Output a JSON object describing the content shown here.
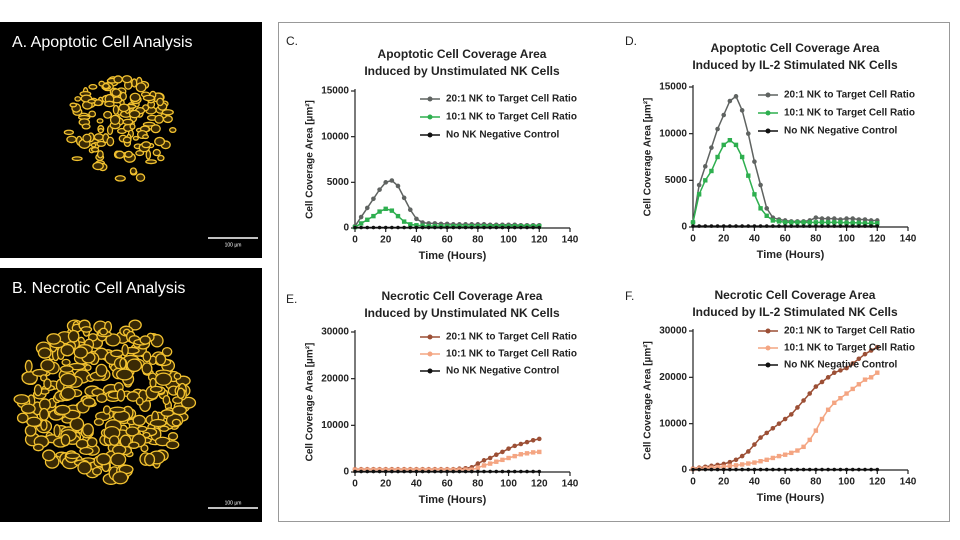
{
  "panels": [
    {
      "label": "A. Apoptotic Cell Analysis",
      "scale_bar": "100 µm"
    },
    {
      "label": "B. Necrotic Cell Analysis",
      "scale_bar": "100 µm"
    }
  ],
  "chart_data": [
    {
      "type": "line",
      "panel": "C.",
      "title": [
        "Apoptotic Cell Coverage Area",
        "Induced by Unstimulated NK Cells"
      ],
      "ylabel": "Cell Coverage Area [µm²]",
      "xlabel": "Time (Hours)",
      "x": [
        0,
        4,
        8,
        12,
        16,
        20,
        24,
        28,
        32,
        36,
        40,
        44,
        48,
        52,
        56,
        60,
        64,
        68,
        72,
        76,
        80,
        84,
        88,
        92,
        96,
        100,
        104,
        108,
        112,
        116,
        120
      ],
      "xlim": [
        0,
        140
      ],
      "xticks": [
        0,
        20,
        40,
        60,
        80,
        100,
        120,
        140
      ],
      "ylim": [
        0,
        15000
      ],
      "yticks": [
        0,
        5000,
        10000,
        15000
      ],
      "series": [
        {
          "name": "20:1 NK to Target Cell Ratio",
          "color": "#5f6361",
          "values": [
            200,
            1200,
            2200,
            3200,
            4200,
            5000,
            5200,
            4600,
            3300,
            2000,
            1000,
            600,
            500,
            500,
            450,
            450,
            400,
            400,
            400,
            400,
            400,
            400,
            350,
            350,
            350,
            350,
            350,
            300,
            300,
            300,
            300
          ]
        },
        {
          "name": "10:1 NK to Target Cell Ratio",
          "color": "#2eaf4f",
          "values": [
            100,
            500,
            900,
            1300,
            1800,
            2100,
            1900,
            1300,
            700,
            400,
            300,
            250,
            200,
            200,
            200,
            200,
            200,
            200,
            200,
            200,
            200,
            200,
            200,
            200,
            200,
            200,
            200,
            200,
            200,
            200,
            200
          ]
        },
        {
          "name": "No NK Negative Control",
          "color": "#111111",
          "values": [
            50,
            50,
            50,
            50,
            50,
            50,
            50,
            50,
            50,
            50,
            50,
            50,
            50,
            50,
            50,
            50,
            50,
            50,
            50,
            50,
            50,
            50,
            50,
            50,
            50,
            50,
            50,
            50,
            50,
            50,
            50
          ]
        }
      ]
    },
    {
      "type": "line",
      "panel": "D.",
      "title": [
        "Apoptotic Cell Coverage Area",
        "Induced by IL-2 Stimulated NK Cells"
      ],
      "ylabel": "Cell Coverage Area [µm²]",
      "xlabel": "Time (Hours)",
      "x": [
        0,
        4,
        8,
        12,
        16,
        20,
        24,
        28,
        32,
        36,
        40,
        44,
        48,
        52,
        56,
        60,
        64,
        68,
        72,
        76,
        80,
        84,
        88,
        92,
        96,
        100,
        104,
        108,
        112,
        116,
        120
      ],
      "xlim": [
        0,
        140
      ],
      "xticks": [
        0,
        20,
        40,
        60,
        80,
        100,
        120,
        140
      ],
      "ylim": [
        0,
        15000
      ],
      "yticks": [
        0,
        5000,
        10000,
        15000
      ],
      "series": [
        {
          "name": "20:1 NK to Target Cell Ratio",
          "color": "#5f6361",
          "values": [
            500,
            4500,
            6500,
            8500,
            10500,
            12000,
            13500,
            14000,
            12500,
            10000,
            7000,
            4500,
            2000,
            1000,
            800,
            700,
            600,
            600,
            600,
            700,
            1000,
            900,
            900,
            900,
            800,
            900,
            900,
            800,
            800,
            700,
            700
          ]
        },
        {
          "name": "10:1 NK to Target Cell Ratio",
          "color": "#2eaf4f",
          "values": [
            500,
            3500,
            5000,
            6000,
            7500,
            8800,
            9300,
            8800,
            7500,
            5500,
            3500,
            2000,
            1200,
            700,
            600,
            500,
            500,
            500,
            500,
            500,
            500,
            500,
            500,
            500,
            500,
            450,
            450,
            450,
            400,
            400,
            400
          ]
        },
        {
          "name": "No NK Negative Control",
          "color": "#111111",
          "values": [
            100,
            100,
            100,
            100,
            100,
            100,
            100,
            100,
            100,
            100,
            100,
            100,
            100,
            100,
            100,
            100,
            100,
            100,
            100,
            100,
            100,
            100,
            100,
            100,
            100,
            100,
            100,
            100,
            100,
            100,
            100
          ]
        }
      ]
    },
    {
      "type": "line",
      "panel": "E.",
      "title": [
        "Necrotic Cell Coverage Area",
        "Induced by Unstimulated NK Cells"
      ],
      "ylabel": "Cell Coverage Area [µm²]",
      "xlabel": "Time (Hours)",
      "x": [
        0,
        4,
        8,
        12,
        16,
        20,
        24,
        28,
        32,
        36,
        40,
        44,
        48,
        52,
        56,
        60,
        64,
        68,
        72,
        76,
        80,
        84,
        88,
        92,
        96,
        100,
        104,
        108,
        112,
        116,
        120
      ],
      "xlim": [
        0,
        140
      ],
      "xticks": [
        0,
        20,
        40,
        60,
        80,
        100,
        120,
        140
      ],
      "ylim": [
        0,
        30000
      ],
      "yticks": [
        0,
        10000,
        20000,
        30000
      ],
      "series": [
        {
          "name": "20:1 NK to Target Cell Ratio",
          "color": "#9c4f35",
          "values": [
            600,
            600,
            600,
            600,
            600,
            600,
            600,
            600,
            600,
            600,
            600,
            600,
            600,
            600,
            600,
            600,
            600,
            700,
            800,
            1000,
            1800,
            2500,
            3000,
            3700,
            4300,
            5000,
            5600,
            6000,
            6400,
            6800,
            7100
          ]
        },
        {
          "name": "10:1 NK to Target Cell Ratio",
          "color": "#f4a582",
          "values": [
            500,
            500,
            500,
            500,
            500,
            500,
            500,
            500,
            500,
            500,
            500,
            500,
            500,
            500,
            500,
            500,
            500,
            500,
            500,
            500,
            900,
            1400,
            1800,
            2200,
            2600,
            3000,
            3400,
            3800,
            4000,
            4200,
            4300
          ]
        },
        {
          "name": "No NK Negative Control",
          "color": "#111111",
          "values": [
            100,
            100,
            100,
            100,
            100,
            100,
            100,
            100,
            100,
            100,
            100,
            100,
            100,
            100,
            100,
            100,
            100,
            100,
            100,
            100,
            100,
            100,
            100,
            100,
            100,
            100,
            100,
            100,
            100,
            100,
            100
          ]
        }
      ]
    },
    {
      "type": "line",
      "panel": "F.",
      "title": [
        "Necrotic Cell Coverage Area",
        "Induced by IL-2 Stimulated NK Cells"
      ],
      "ylabel": "Cell Coverage Area [µm²]",
      "xlabel": "Time (Hours)",
      "x": [
        0,
        4,
        8,
        12,
        16,
        20,
        24,
        28,
        32,
        36,
        40,
        44,
        48,
        52,
        56,
        60,
        64,
        68,
        72,
        76,
        80,
        84,
        88,
        92,
        96,
        100,
        104,
        108,
        112,
        116,
        120
      ],
      "xlim": [
        0,
        140
      ],
      "xticks": [
        0,
        20,
        40,
        60,
        80,
        100,
        120,
        140
      ],
      "ylim": [
        0,
        30000
      ],
      "yticks": [
        0,
        10000,
        20000,
        30000
      ],
      "series": [
        {
          "name": "20:1 NK to Target Cell Ratio",
          "color": "#9c4f35",
          "values": [
            300,
            500,
            700,
            900,
            1100,
            1300,
            1700,
            2200,
            3000,
            4000,
            5500,
            7000,
            8000,
            9000,
            10000,
            11000,
            12000,
            13500,
            15000,
            16500,
            18000,
            19000,
            20000,
            21000,
            21500,
            22000,
            23000,
            24000,
            25000,
            25800,
            26500
          ]
        },
        {
          "name": "10:1 NK to Target Cell Ratio",
          "color": "#f4a582",
          "values": [
            200,
            300,
            400,
            500,
            600,
            700,
            900,
            1000,
            1200,
            1400,
            1600,
            1900,
            2200,
            2600,
            3000,
            3300,
            3700,
            4200,
            5000,
            6500,
            8500,
            11000,
            13000,
            14500,
            15500,
            16500,
            17500,
            18500,
            19500,
            20000,
            21000
          ]
        },
        {
          "name": "No NK Negative Control",
          "color": "#111111",
          "values": [
            100,
            100,
            100,
            100,
            100,
            100,
            100,
            100,
            100,
            100,
            100,
            100,
            100,
            100,
            100,
            100,
            100,
            100,
            100,
            100,
            100,
            100,
            100,
            100,
            100,
            100,
            100,
            100,
            100,
            100,
            100
          ]
        }
      ]
    }
  ]
}
